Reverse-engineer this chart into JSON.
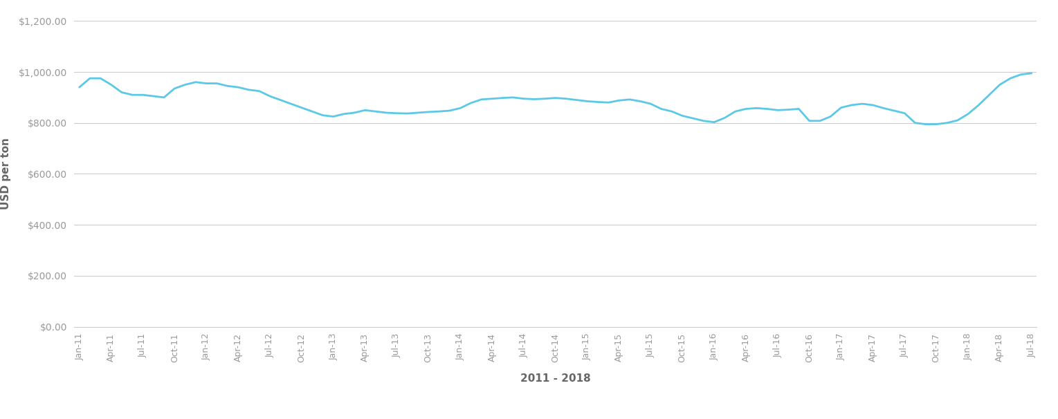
{
  "xlabel": "2011 - 2018",
  "ylabel": "USD per ton",
  "line_color": "#5BC8E8",
  "line_width": 2.0,
  "background_color": "#ffffff",
  "grid_color": "#cccccc",
  "tick_label_color": "#999999",
  "axis_label_color": "#666666",
  "ylim": [
    0,
    1200
  ],
  "yticks": [
    0,
    200,
    400,
    600,
    800,
    1000,
    1200
  ],
  "ytick_labels": [
    "$0.00",
    "$200.00",
    "$400.00",
    "$600.00",
    "$800.00",
    "$1,000.00",
    "$1,200.00"
  ],
  "values": [
    940,
    975,
    975,
    950,
    920,
    910,
    910,
    905,
    900,
    935,
    950,
    960,
    955,
    955,
    945,
    940,
    930,
    925,
    905,
    890,
    875,
    860,
    845,
    830,
    825,
    835,
    840,
    850,
    845,
    840,
    838,
    837,
    840,
    843,
    845,
    848,
    858,
    878,
    892,
    895,
    898,
    900,
    895,
    893,
    895,
    898,
    895,
    890,
    885,
    882,
    880,
    888,
    892,
    885,
    875,
    855,
    845,
    828,
    818,
    808,
    803,
    820,
    845,
    855,
    858,
    855,
    850,
    852,
    855,
    808,
    808,
    825,
    860,
    870,
    875,
    870,
    858,
    848,
    838,
    800,
    795,
    795,
    800,
    810,
    835,
    870,
    910,
    950,
    975,
    990,
    995
  ],
  "xtick_positions": [
    0,
    3,
    6,
    9,
    12,
    15,
    18,
    21,
    24,
    27,
    30,
    33,
    36,
    39,
    42,
    45,
    48,
    51,
    54,
    57,
    60,
    63,
    66,
    69,
    72,
    75,
    78,
    81,
    84,
    87,
    90
  ],
  "xtick_labels": [
    "Jan-11",
    "Apr-11",
    "Jul-11",
    "Oct-11",
    "Jan-12",
    "Apr-12",
    "Jul-12",
    "Oct-12",
    "Jan-13",
    "Apr-13",
    "Jul-13",
    "Oct-13",
    "Jan-14",
    "Apr-14",
    "Jul-14",
    "Oct-14",
    "Jan-15",
    "Apr-15",
    "Jul-15",
    "Oct-15",
    "Jan-16",
    "Apr-16",
    "Jul-16",
    "Oct-16",
    "Jan-17",
    "Apr-17",
    "Jul-17",
    "Oct-17",
    "Jan-18",
    "Apr-18",
    "Jul-18"
  ]
}
